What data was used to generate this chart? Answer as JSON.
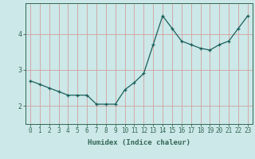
{
  "xlabel": "Humidex (Indice chaleur)",
  "x": [
    0,
    1,
    2,
    3,
    4,
    5,
    6,
    7,
    8,
    9,
    10,
    11,
    12,
    13,
    14,
    15,
    16,
    17,
    18,
    19,
    20,
    21,
    22,
    23
  ],
  "y": [
    2.7,
    2.6,
    2.5,
    2.4,
    2.3,
    2.3,
    2.3,
    2.05,
    2.05,
    2.05,
    2.45,
    2.65,
    2.9,
    3.7,
    4.5,
    4.15,
    3.8,
    3.7,
    3.6,
    3.55,
    3.7,
    3.8,
    4.15,
    4.5
  ],
  "line_color": "#1a5f5a",
  "marker": "+",
  "marker_size": 3.5,
  "bg_color": "#cce8e8",
  "grid_color": "#d4a0a0",
  "axis_color": "#336655",
  "text_color": "#336655",
  "ylim": [
    1.5,
    4.85
  ],
  "xlim": [
    -0.5,
    23.5
  ],
  "yticks": [
    2,
    3,
    4
  ],
  "xticks": [
    0,
    1,
    2,
    3,
    4,
    5,
    6,
    7,
    8,
    9,
    10,
    11,
    12,
    13,
    14,
    15,
    16,
    17,
    18,
    19,
    20,
    21,
    22,
    23
  ],
  "tick_fontsize": 5.5,
  "xlabel_fontsize": 6.5,
  "linewidth": 0.9,
  "marker_lw": 0.9
}
